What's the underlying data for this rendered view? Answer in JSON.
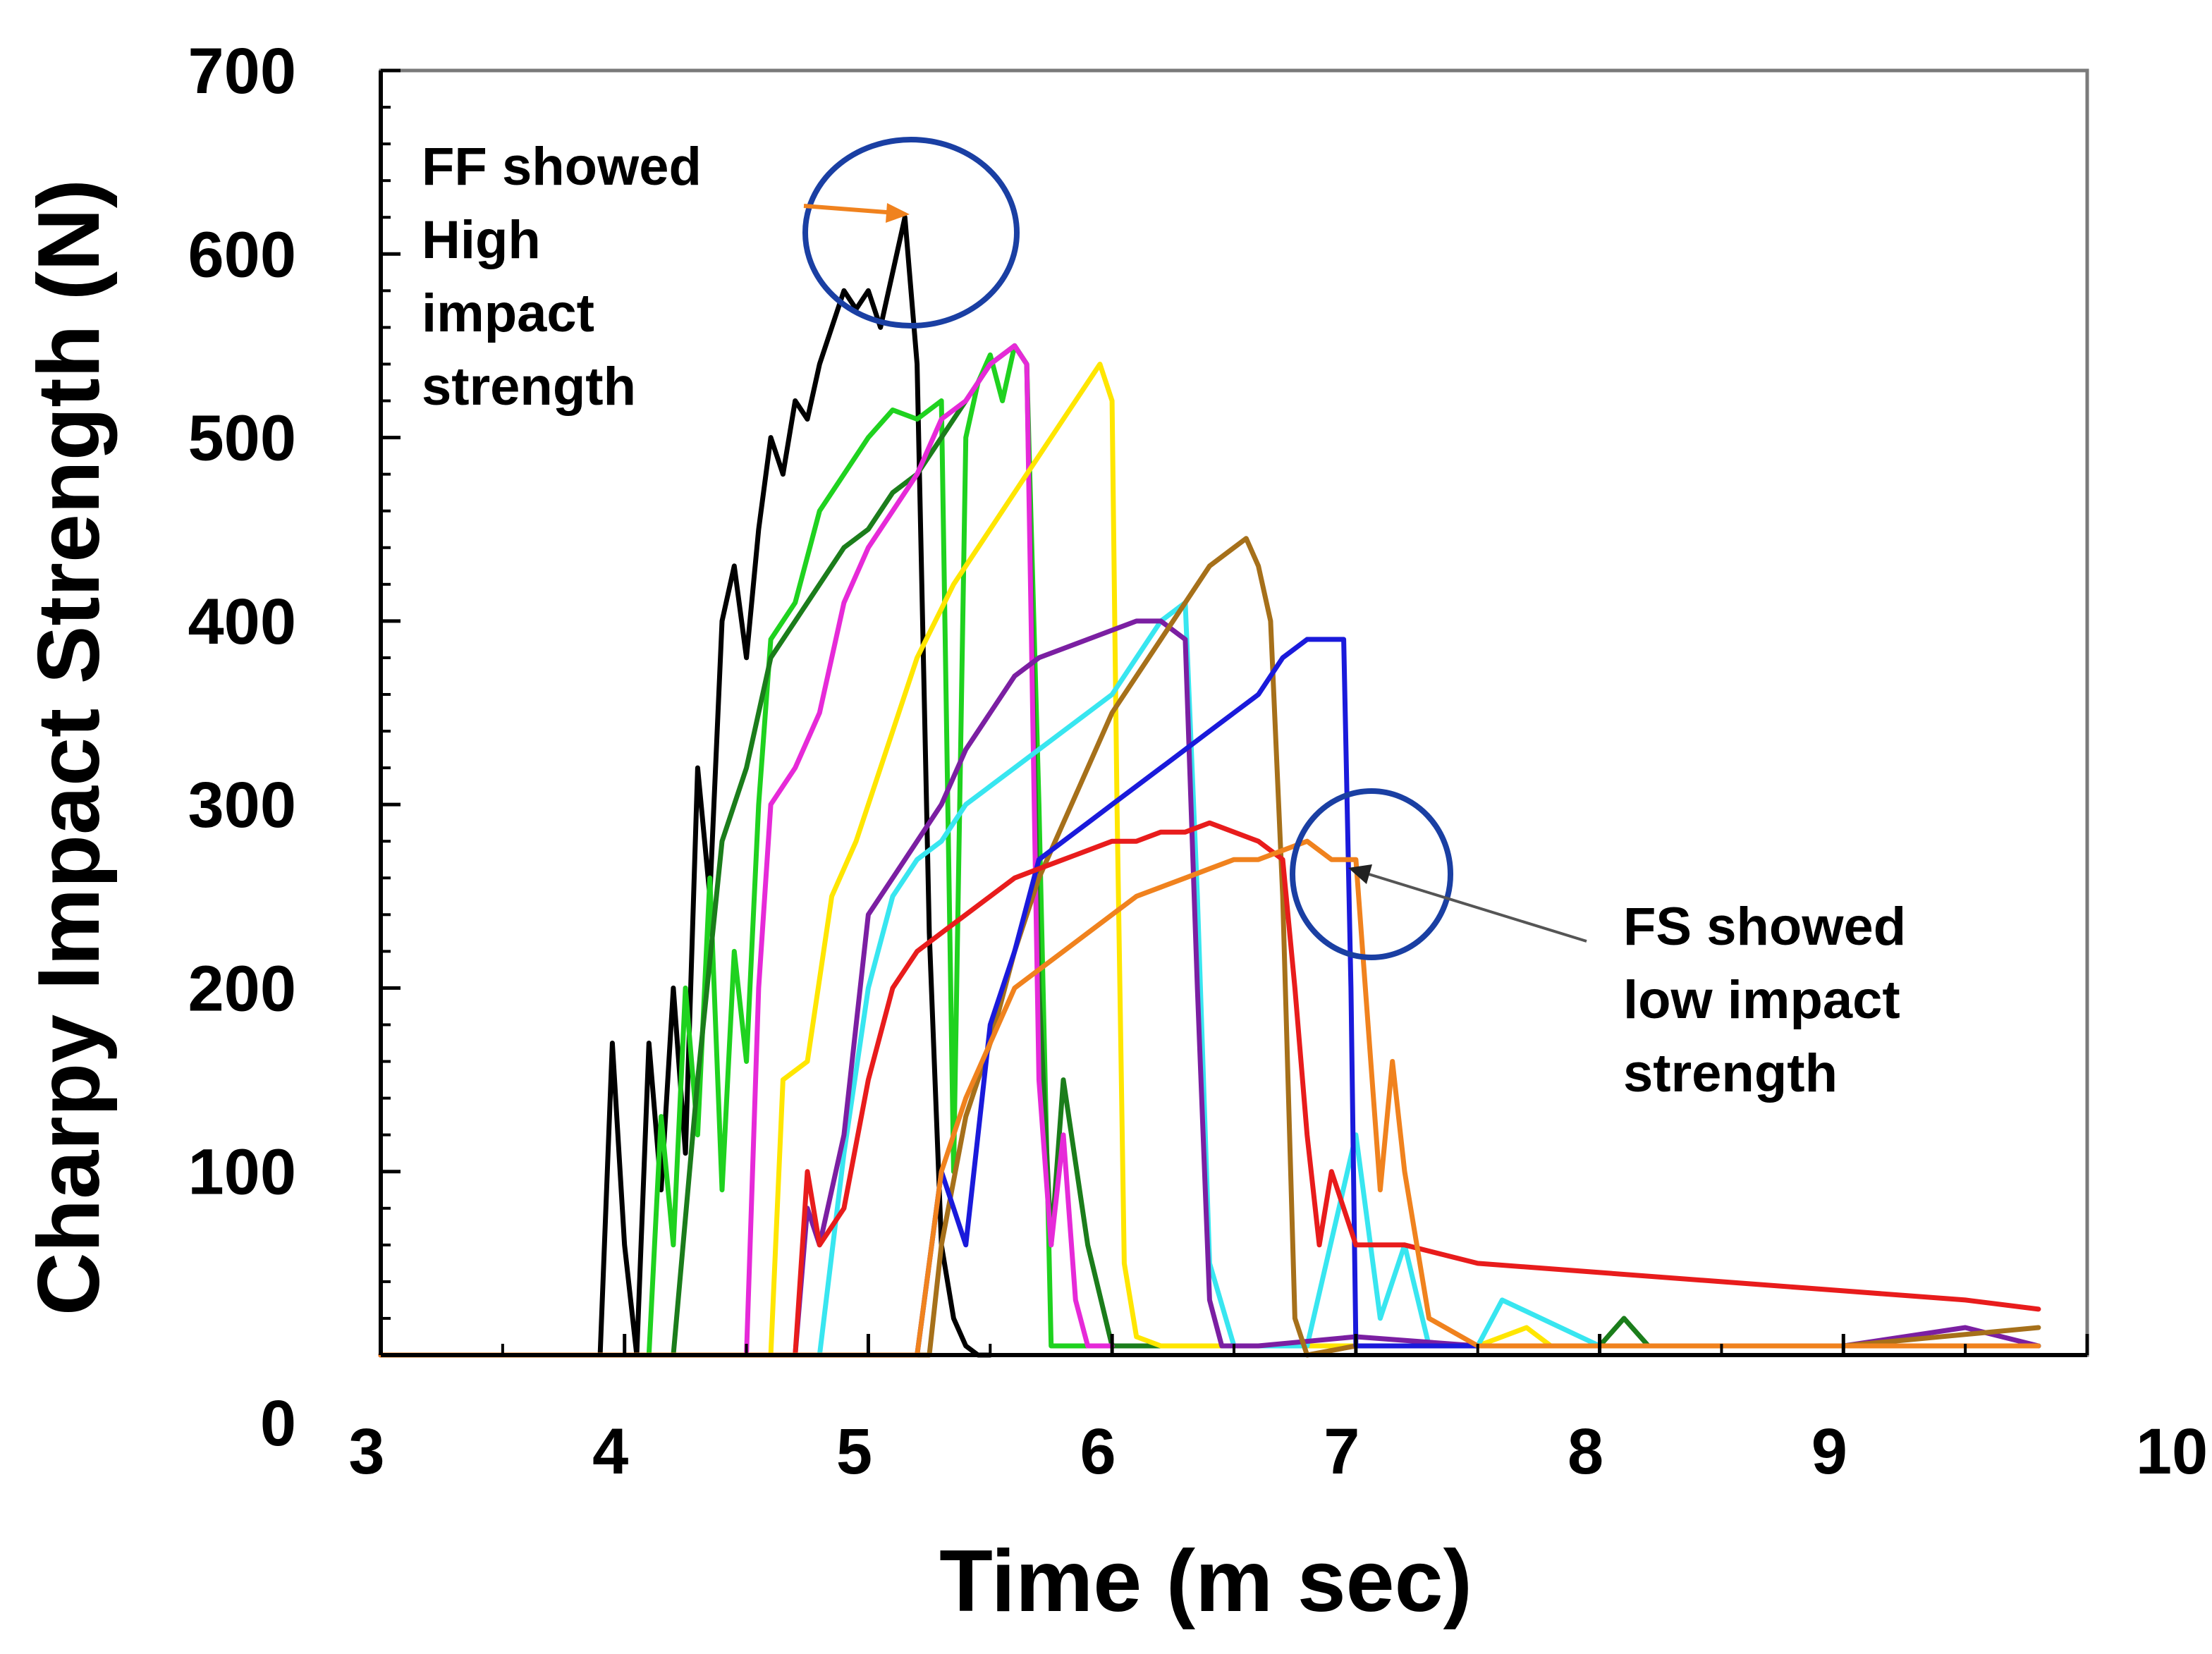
{
  "chart_data": {
    "type": "line",
    "title": "",
    "xlabel": "Time (m sec)",
    "ylabel": "Charpy Impact Strength (N)",
    "xlim": [
      3,
      10
    ],
    "ylim": [
      0,
      700
    ],
    "x_ticks": [
      "3",
      "4",
      "5",
      "6",
      "7",
      "8",
      "9",
      "10"
    ],
    "y_ticks": [
      "0",
      "100",
      "200",
      "300",
      "400",
      "500",
      "600",
      "700"
    ],
    "grid": false,
    "legend": "none",
    "series": [
      {
        "name": "black",
        "color": "#000000",
        "x": [
          3.0,
          3.9,
          3.95,
          4.0,
          4.05,
          4.1,
          4.15,
          4.2,
          4.25,
          4.3,
          4.35,
          4.4,
          4.45,
          4.5,
          4.55,
          4.6,
          4.65,
          4.7,
          4.75,
          4.8,
          4.85,
          4.9,
          4.95,
          5.0,
          5.05,
          5.1,
          5.15,
          5.2,
          5.25,
          5.3,
          5.35,
          5.4,
          5.45,
          5.5
        ],
        "y": [
          0,
          0,
          170,
          60,
          0,
          170,
          90,
          200,
          110,
          320,
          250,
          400,
          430,
          380,
          450,
          500,
          480,
          520,
          510,
          540,
          560,
          580,
          570,
          580,
          560,
          590,
          620,
          540,
          230,
          60,
          20,
          5,
          0,
          0
        ]
      },
      {
        "name": "green",
        "color": "#1fd21f",
        "x": [
          3.0,
          4.1,
          4.15,
          4.2,
          4.25,
          4.3,
          4.35,
          4.4,
          4.45,
          4.5,
          4.55,
          4.6,
          4.7,
          4.8,
          4.9,
          5.0,
          5.1,
          5.2,
          5.3,
          5.35,
          5.4,
          5.45,
          5.5,
          5.55,
          5.6,
          5.65,
          5.7,
          5.75,
          5.8,
          6.0,
          6.5,
          7.0,
          8.0,
          9.0,
          9.8
        ],
        "y": [
          0,
          0,
          130,
          60,
          200,
          120,
          260,
          90,
          220,
          160,
          300,
          390,
          410,
          460,
          480,
          500,
          515,
          510,
          520,
          100,
          500,
          530,
          545,
          520,
          550,
          540,
          300,
          5,
          5,
          5,
          5,
          5,
          5,
          5,
          5
        ]
      },
      {
        "name": "dark green",
        "color": "#1b7d1b",
        "x": [
          3.0,
          4.2,
          4.3,
          4.4,
          4.5,
          4.6,
          4.7,
          4.8,
          4.9,
          5.0,
          5.1,
          5.2,
          5.3,
          5.4,
          5.5,
          5.6,
          5.65,
          5.7,
          5.75,
          5.8,
          5.9,
          6.0,
          6.5,
          7.0,
          7.5,
          8.0,
          8.1,
          8.2,
          9.0,
          9.8
        ],
        "y": [
          0,
          0,
          150,
          280,
          320,
          380,
          400,
          420,
          440,
          450,
          470,
          480,
          500,
          520,
          540,
          550,
          540,
          200,
          60,
          150,
          60,
          5,
          5,
          5,
          5,
          5,
          20,
          5,
          5,
          5
        ]
      },
      {
        "name": "magenta",
        "color": "#e62ad8",
        "x": [
          3.0,
          4.5,
          4.55,
          4.6,
          4.7,
          4.8,
          4.9,
          5.0,
          5.1,
          5.2,
          5.3,
          5.4,
          5.5,
          5.6,
          5.65,
          5.7,
          5.75,
          5.8,
          5.85,
          5.9,
          6.0
        ],
        "y": [
          0,
          0,
          200,
          300,
          320,
          350,
          410,
          440,
          460,
          480,
          510,
          520,
          540,
          550,
          540,
          150,
          60,
          120,
          30,
          5,
          5
        ]
      },
      {
        "name": "yellow",
        "color": "#ffe600",
        "x": [
          3.0,
          4.6,
          4.65,
          4.75,
          4.85,
          4.95,
          5.05,
          5.2,
          5.35,
          5.5,
          5.65,
          5.8,
          5.9,
          5.95,
          6.0,
          6.02,
          6.05,
          6.1,
          6.2,
          6.5,
          7.0,
          7.5,
          7.7,
          7.8,
          8.0,
          9.0,
          9.8
        ],
        "y": [
          0,
          0,
          150,
          160,
          250,
          280,
          320,
          380,
          420,
          450,
          480,
          510,
          530,
          540,
          520,
          300,
          50,
          10,
          5,
          5,
          5,
          5,
          15,
          5,
          5,
          5,
          5
        ]
      },
      {
        "name": "cyan",
        "color": "#38e6f0",
        "x": [
          3.0,
          4.8,
          4.9,
          5.0,
          5.1,
          5.2,
          5.3,
          5.4,
          5.5,
          5.6,
          5.7,
          5.8,
          5.9,
          6.0,
          6.1,
          6.2,
          6.3,
          6.35,
          6.4,
          6.5,
          6.8,
          7.0,
          7.1,
          7.2,
          7.3,
          7.5,
          7.6,
          8.0,
          9.0,
          9.8
        ],
        "y": [
          0,
          0,
          110,
          200,
          250,
          270,
          280,
          300,
          310,
          320,
          330,
          340,
          350,
          360,
          380,
          400,
          410,
          250,
          50,
          5,
          5,
          120,
          20,
          60,
          5,
          5,
          30,
          5,
          5,
          5
        ]
      },
      {
        "name": "purple",
        "color": "#7b1fa2",
        "x": [
          3.0,
          4.7,
          4.75,
          4.8,
          4.9,
          5.0,
          5.1,
          5.2,
          5.3,
          5.4,
          5.5,
          5.6,
          5.7,
          5.8,
          5.9,
          6.0,
          6.1,
          6.2,
          6.3,
          6.35,
          6.4,
          6.45,
          6.5,
          6.6,
          7.0,
          7.5,
          8.0,
          9.0,
          9.5,
          9.8
        ],
        "y": [
          0,
          0,
          80,
          60,
          120,
          240,
          260,
          280,
          300,
          330,
          350,
          370,
          380,
          385,
          390,
          395,
          400,
          400,
          390,
          200,
          30,
          5,
          5,
          5,
          10,
          5,
          5,
          5,
          15,
          5
        ]
      },
      {
        "name": "brown",
        "color": "#a6701a",
        "x": [
          3.0,
          5.25,
          5.3,
          5.4,
          5.5,
          5.6,
          5.7,
          5.8,
          5.9,
          6.0,
          6.1,
          6.2,
          6.3,
          6.4,
          6.5,
          6.55,
          6.6,
          6.65,
          6.7,
          6.75,
          6.8,
          7.0,
          8.0,
          9.0,
          9.8
        ],
        "y": [
          0,
          0,
          60,
          130,
          170,
          220,
          260,
          290,
          320,
          350,
          370,
          390,
          410,
          430,
          440,
          445,
          430,
          400,
          250,
          20,
          0,
          5,
          5,
          5,
          15
        ]
      },
      {
        "name": "blue",
        "color": "#1a1adb",
        "x": [
          3.0,
          5.2,
          5.3,
          5.4,
          5.5,
          5.6,
          5.7,
          5.8,
          5.9,
          6.0,
          6.1,
          6.2,
          6.3,
          6.4,
          6.5,
          6.6,
          6.7,
          6.8,
          6.9,
          6.95,
          6.98,
          7.0,
          7.1,
          8.0,
          9.0,
          9.8
        ],
        "y": [
          0,
          0,
          100,
          60,
          180,
          220,
          270,
          280,
          290,
          300,
          310,
          320,
          330,
          340,
          350,
          360,
          380,
          390,
          390,
          390,
          200,
          5,
          5,
          5,
          5,
          5
        ]
      },
      {
        "name": "red",
        "color": "#e81c1c",
        "x": [
          3.0,
          4.7,
          4.75,
          4.8,
          4.9,
          5.0,
          5.1,
          5.2,
          5.3,
          5.4,
          5.5,
          5.6,
          5.7,
          5.8,
          5.9,
          6.0,
          6.1,
          6.2,
          6.3,
          6.4,
          6.5,
          6.6,
          6.7,
          6.75,
          6.8,
          6.85,
          6.9,
          7.0,
          7.2,
          7.5,
          8.0,
          8.5,
          9.0,
          9.5,
          9.8
        ],
        "y": [
          0,
          0,
          100,
          60,
          80,
          150,
          200,
          220,
          230,
          240,
          250,
          260,
          265,
          270,
          275,
          280,
          280,
          285,
          285,
          290,
          285,
          280,
          270,
          200,
          120,
          60,
          100,
          60,
          60,
          50,
          45,
          40,
          35,
          30,
          25
        ]
      },
      {
        "name": "orange",
        "color": "#f0821e",
        "x": [
          3.0,
          5.2,
          5.3,
          5.4,
          5.5,
          5.6,
          5.7,
          5.8,
          5.9,
          6.0,
          6.1,
          6.2,
          6.3,
          6.4,
          6.5,
          6.6,
          6.7,
          6.8,
          6.9,
          7.0,
          7.1,
          7.15,
          7.2,
          7.3,
          7.5,
          8.0,
          9.0,
          9.8
        ],
        "y": [
          0,
          0,
          100,
          140,
          170,
          200,
          210,
          220,
          230,
          240,
          250,
          255,
          260,
          265,
          270,
          270,
          275,
          280,
          270,
          270,
          90,
          160,
          100,
          20,
          5,
          5,
          5,
          5
        ]
      }
    ],
    "annotations": [
      {
        "label": "FF showed High impact strength",
        "lines": [
          "FF showed",
          "High",
          "impact",
          "strength"
        ],
        "target_x": 5.15,
        "target_y": 620
      },
      {
        "label": "FS showed low impact strength",
        "lines": [
          "FS showed",
          "low impact",
          "strength"
        ],
        "target_x": 6.95,
        "target_y": 265
      }
    ]
  }
}
